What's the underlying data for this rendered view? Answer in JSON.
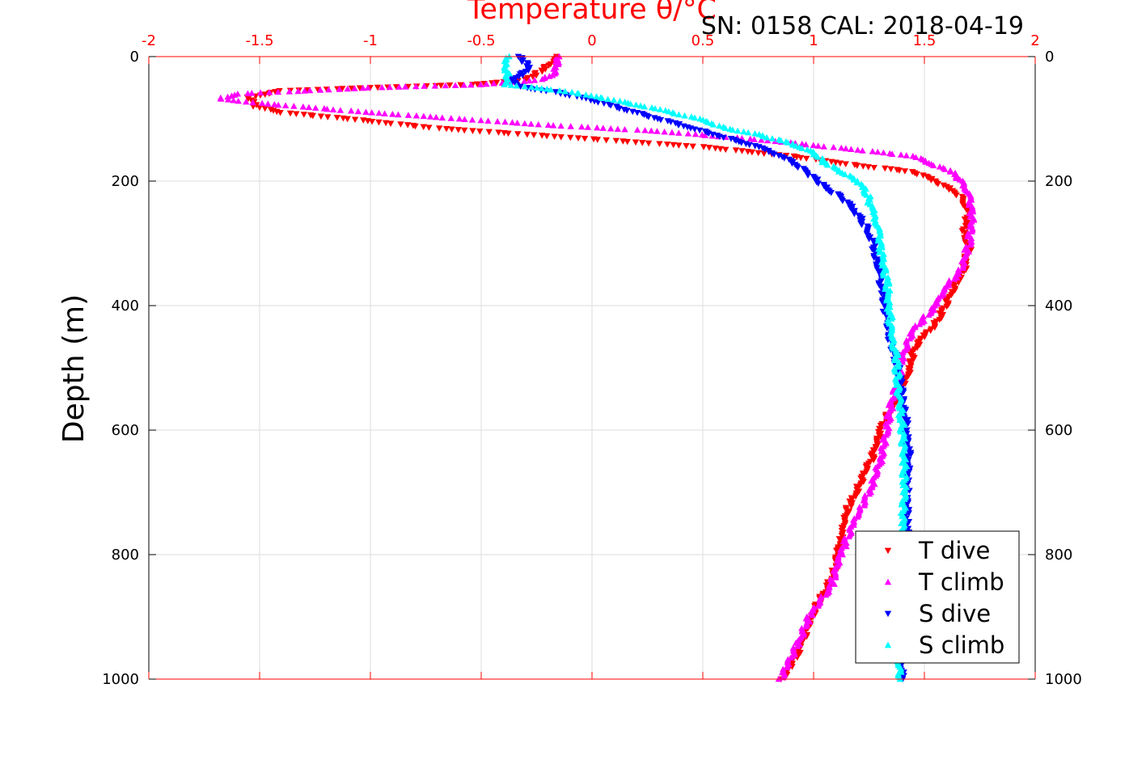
{
  "chart_data": {
    "type": "scatter",
    "title": "Temperature θ/°C",
    "subtitle": "SN: 0158  CAL: 2018-04-19",
    "ylabel": "Depth (m)",
    "xlim": [
      -2,
      2
    ],
    "ylim": [
      0,
      1000
    ],
    "y_reversed": true,
    "grid": true,
    "legend_placement": "bottom-right",
    "x_ticks": [
      -2,
      -1.5,
      -1,
      -0.5,
      0,
      0.5,
      1,
      1.5,
      2
    ],
    "x_tick_labels": [
      "-2",
      "-1.5",
      "-1",
      "-0.5",
      "0",
      "0.5",
      "1",
      "1.5",
      "2"
    ],
    "y_ticks": [
      0,
      200,
      400,
      600,
      800,
      1000
    ],
    "y_tick_labels": [
      "0",
      "200",
      "400",
      "600",
      "800",
      "1000"
    ],
    "colors": {
      "axis_top": "#ff0000",
      "t_dive": "#ff0000",
      "t_climb": "#ff00ff",
      "s_dive": "#0000ff",
      "s_climb": "#00ffff",
      "grid": "#dddddd"
    },
    "series": [
      {
        "name": "T dive",
        "marker": "triangle-down",
        "color": "#ff0000",
        "points": [
          [
            -0.16,
            0
          ],
          [
            -0.18,
            10
          ],
          [
            -0.22,
            20
          ],
          [
            -0.26,
            30
          ],
          [
            -0.3,
            38
          ],
          [
            -0.55,
            45
          ],
          [
            -1.0,
            50
          ],
          [
            -1.4,
            55
          ],
          [
            -1.55,
            65
          ],
          [
            -1.52,
            80
          ],
          [
            -1.4,
            90
          ],
          [
            -1.1,
            100
          ],
          [
            -0.7,
            115
          ],
          [
            -0.3,
            125
          ],
          [
            0.1,
            135
          ],
          [
            0.5,
            145
          ],
          [
            0.9,
            160
          ],
          [
            1.2,
            175
          ],
          [
            1.45,
            185
          ],
          [
            1.55,
            200
          ],
          [
            1.65,
            220
          ],
          [
            1.7,
            245
          ],
          [
            1.68,
            280
          ],
          [
            1.7,
            310
          ],
          [
            1.68,
            340
          ],
          [
            1.62,
            380
          ],
          [
            1.57,
            420
          ],
          [
            1.5,
            450
          ],
          [
            1.45,
            470
          ],
          [
            1.44,
            500
          ],
          [
            1.4,
            530
          ],
          [
            1.36,
            560
          ],
          [
            1.3,
            600
          ],
          [
            1.27,
            640
          ],
          [
            1.22,
            680
          ],
          [
            1.15,
            730
          ],
          [
            1.12,
            780
          ],
          [
            1.1,
            820
          ],
          [
            1.05,
            860
          ],
          [
            0.99,
            900
          ],
          [
            0.94,
            950
          ],
          [
            0.86,
            1000
          ]
        ]
      },
      {
        "name": "T climb",
        "marker": "triangle-up",
        "color": "#ff00ff",
        "points": [
          [
            -0.15,
            0
          ],
          [
            -0.16,
            15
          ],
          [
            -0.17,
            30
          ],
          [
            -0.25,
            38
          ],
          [
            -0.5,
            45
          ],
          [
            -1.0,
            50
          ],
          [
            -1.6,
            60
          ],
          [
            -1.68,
            68
          ],
          [
            -1.5,
            75
          ],
          [
            -1.0,
            90
          ],
          [
            -0.6,
            100
          ],
          [
            -0.2,
            110
          ],
          [
            0.3,
            120
          ],
          [
            0.8,
            135
          ],
          [
            1.2,
            150
          ],
          [
            1.45,
            160
          ],
          [
            1.55,
            175
          ],
          [
            1.62,
            185
          ],
          [
            1.67,
            200
          ],
          [
            1.7,
            225
          ],
          [
            1.72,
            260
          ],
          [
            1.7,
            300
          ],
          [
            1.67,
            340
          ],
          [
            1.6,
            370
          ],
          [
            1.55,
            400
          ],
          [
            1.45,
            440
          ],
          [
            1.4,
            480
          ],
          [
            1.38,
            520
          ],
          [
            1.35,
            560
          ],
          [
            1.33,
            600
          ],
          [
            1.3,
            650
          ],
          [
            1.25,
            700
          ],
          [
            1.18,
            750
          ],
          [
            1.12,
            800
          ],
          [
            1.08,
            850
          ],
          [
            0.98,
            900
          ],
          [
            0.92,
            950
          ],
          [
            0.85,
            1000
          ]
        ]
      },
      {
        "name": "S dive",
        "marker": "triangle-down",
        "color": "#0000ff",
        "points": [
          [
            -0.33,
            0
          ],
          [
            -0.3,
            10
          ],
          [
            -0.29,
            20
          ],
          [
            -0.32,
            30
          ],
          [
            -0.37,
            40
          ],
          [
            -0.3,
            50
          ],
          [
            -0.15,
            58
          ],
          [
            0.0,
            70
          ],
          [
            0.15,
            85
          ],
          [
            0.3,
            100
          ],
          [
            0.45,
            115
          ],
          [
            0.6,
            130
          ],
          [
            0.75,
            145
          ],
          [
            0.88,
            165
          ],
          [
            0.95,
            180
          ],
          [
            1.0,
            195
          ],
          [
            1.05,
            210
          ],
          [
            1.12,
            225
          ],
          [
            1.18,
            245
          ],
          [
            1.22,
            265
          ],
          [
            1.26,
            290
          ],
          [
            1.28,
            320
          ],
          [
            1.3,
            350
          ],
          [
            1.31,
            380
          ],
          [
            1.33,
            420
          ],
          [
            1.35,
            460
          ],
          [
            1.38,
            500
          ],
          [
            1.4,
            550
          ],
          [
            1.42,
            600
          ],
          [
            1.43,
            650
          ],
          [
            1.42,
            700
          ],
          [
            1.42,
            750
          ],
          [
            1.42,
            800
          ],
          [
            1.41,
            850
          ],
          [
            1.41,
            900
          ],
          [
            1.4,
            950
          ],
          [
            1.4,
            1000
          ]
        ]
      },
      {
        "name": "S climb",
        "marker": "triangle-up",
        "color": "#00ffff",
        "points": [
          [
            -0.38,
            0
          ],
          [
            -0.39,
            15
          ],
          [
            -0.38,
            30
          ],
          [
            -0.39,
            45
          ],
          [
            -0.2,
            52
          ],
          [
            -0.05,
            60
          ],
          [
            0.1,
            70
          ],
          [
            0.3,
            85
          ],
          [
            0.48,
            100
          ],
          [
            0.6,
            115
          ],
          [
            0.75,
            125
          ],
          [
            0.9,
            140
          ],
          [
            1.0,
            155
          ],
          [
            1.05,
            170
          ],
          [
            1.12,
            185
          ],
          [
            1.2,
            200
          ],
          [
            1.24,
            220
          ],
          [
            1.27,
            250
          ],
          [
            1.29,
            280
          ],
          [
            1.31,
            320
          ],
          [
            1.33,
            360
          ],
          [
            1.34,
            400
          ],
          [
            1.35,
            440
          ],
          [
            1.37,
            480
          ],
          [
            1.38,
            520
          ],
          [
            1.39,
            560
          ],
          [
            1.4,
            600
          ],
          [
            1.41,
            650
          ],
          [
            1.41,
            700
          ],
          [
            1.4,
            750
          ],
          [
            1.4,
            800
          ],
          [
            1.39,
            850
          ],
          [
            1.39,
            900
          ],
          [
            1.39,
            950
          ],
          [
            1.39,
            1000
          ]
        ]
      }
    ]
  }
}
